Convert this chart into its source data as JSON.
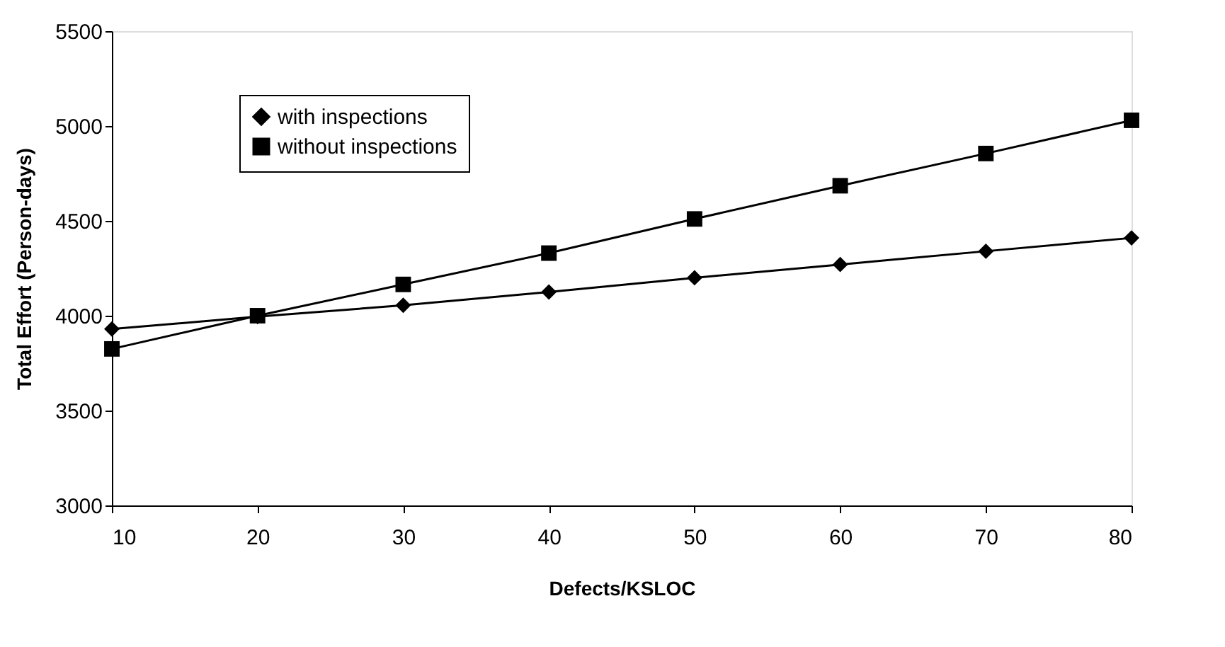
{
  "chart_data": {
    "type": "line",
    "xlabel": "Defects/KSLOC",
    "ylabel": "Total Effort (Person-days)",
    "x": [
      10,
      20,
      30,
      40,
      50,
      60,
      70,
      80
    ],
    "series": [
      {
        "name": "with inspections",
        "color": "#000000",
        "marker": "diamond",
        "values": [
          3930,
          3995,
          4055,
          4125,
          4200,
          4270,
          4340,
          4410
        ]
      },
      {
        "name": "without inspections",
        "color": "#000000",
        "marker": "square",
        "values": [
          3825,
          4000,
          4165,
          4330,
          4510,
          4685,
          4855,
          5030
        ]
      }
    ],
    "xlim": [
      10,
      80
    ],
    "xticks": [
      10,
      20,
      30,
      40,
      50,
      60,
      70,
      80
    ],
    "ylim": [
      3000,
      5500
    ],
    "yticks": [
      3000,
      3500,
      4000,
      4500,
      5000,
      5500
    ],
    "grid": false,
    "legend": "top left",
    "line_style": "solid"
  }
}
